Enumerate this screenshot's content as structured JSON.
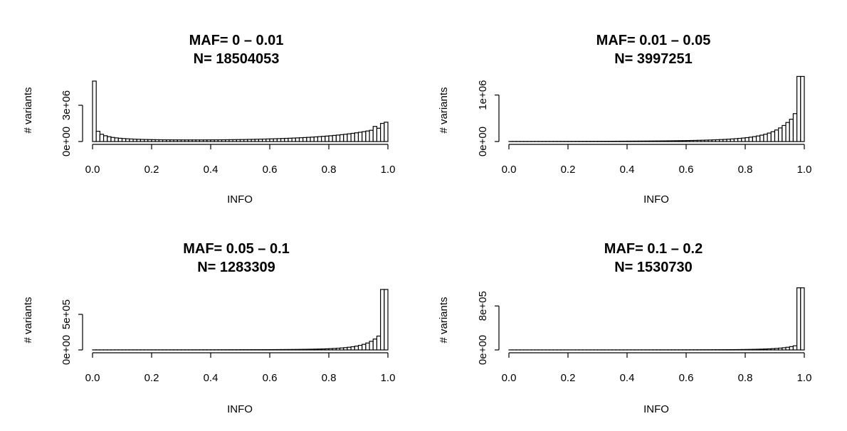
{
  "chart_data": [
    {
      "type": "bar",
      "title": "MAF= 0 – 0.01",
      "subtitle": "N= 18504053",
      "xlabel": "INFO",
      "ylabel": "# variants",
      "xlim": [
        0,
        1
      ],
      "ylim": [
        0,
        5000000
      ],
      "x_ticks": [
        "0.0",
        "0.2",
        "0.4",
        "0.6",
        "0.8",
        "1.0"
      ],
      "y_ticks": [
        {
          "value": 0,
          "label": "0e+00"
        },
        {
          "value": 3000000,
          "label": "3e+06"
        }
      ],
      "bin_width": 0.0125,
      "values": [
        5000000,
        850000,
        600000,
        480000,
        400000,
        340000,
        300000,
        270000,
        245000,
        225000,
        210000,
        195000,
        185000,
        175000,
        168000,
        160000,
        155000,
        150000,
        146000,
        142000,
        140000,
        138000,
        136000,
        135000,
        134000,
        133000,
        133000,
        133000,
        133000,
        134000,
        135000,
        136000,
        138000,
        140000,
        142000,
        145000,
        148000,
        152000,
        156000,
        160000,
        165000,
        170000,
        176000,
        182000,
        189000,
        196000,
        204000,
        212000,
        221000,
        230000,
        240000,
        251000,
        262000,
        274000,
        287000,
        300000,
        315000,
        330000,
        347000,
        365000,
        385000,
        406000,
        428000,
        452000,
        478000,
        505000,
        535000,
        567000,
        601000,
        638000,
        678000,
        721000,
        767000,
        818000,
        872000,
        930000,
        1250000,
        1100000,
        1500000,
        1600000
      ]
    },
    {
      "type": "bar",
      "title": "MAF= 0.01 – 0.05",
      "subtitle": "N= 3997251",
      "xlabel": "INFO",
      "ylabel": "# variants",
      "xlim": [
        0,
        1
      ],
      "ylim": [
        0,
        1300000
      ],
      "x_ticks": [
        "0.0",
        "0.2",
        "0.4",
        "0.6",
        "0.8",
        "1.0"
      ],
      "y_ticks": [
        {
          "value": 0,
          "label": "0e+00"
        },
        {
          "value": 1000000,
          "label": "1e+06"
        }
      ],
      "bin_width": 0.0125,
      "values": [
        2000,
        2100,
        2200,
        2300,
        2400,
        2500,
        2600,
        2700,
        2800,
        2900,
        3000,
        3100,
        3200,
        3350,
        3500,
        3650,
        3800,
        3950,
        4100,
        4300,
        4500,
        4700,
        4900,
        5100,
        5300,
        5600,
        5900,
        6200,
        6500,
        6800,
        7200,
        7600,
        8000,
        8400,
        8900,
        9400,
        9900,
        10500,
        11100,
        11800,
        12500,
        13300,
        14100,
        15000,
        16000,
        17000,
        18200,
        19500,
        21000,
        22500,
        24200,
        26100,
        28200,
        30500,
        33000,
        35800,
        38900,
        42400,
        46300,
        50700,
        55700,
        61400,
        68000,
        75500,
        84000,
        94000,
        106000,
        120000,
        137000,
        157000,
        182000,
        212000,
        248000,
        292000,
        345000,
        410000,
        480000,
        600000,
        1400000,
        1400000
      ]
    },
    {
      "type": "bar",
      "title": "MAF= 0.05 – 0.1",
      "subtitle": "N= 1283309",
      "xlabel": "INFO",
      "ylabel": "# variants",
      "xlim": [
        0,
        1
      ],
      "ylim": [
        0,
        850000
      ],
      "x_ticks": [
        "0.0",
        "0.2",
        "0.4",
        "0.6",
        "0.8",
        "1.0"
      ],
      "y_ticks": [
        {
          "value": 0,
          "label": "0e+00"
        },
        {
          "value": 500000,
          "label": "5e+05"
        }
      ],
      "bin_width": 0.0125,
      "values": [
        800,
        820,
        840,
        860,
        880,
        900,
        920,
        940,
        960,
        980,
        1000,
        1030,
        1060,
        1090,
        1120,
        1150,
        1180,
        1210,
        1250,
        1290,
        1330,
        1370,
        1410,
        1450,
        1500,
        1550,
        1600,
        1660,
        1720,
        1780,
        1850,
        1920,
        2000,
        2080,
        2170,
        2260,
        2360,
        2470,
        2590,
        2710,
        2850,
        2990,
        3150,
        3320,
        3500,
        3700,
        3920,
        4160,
        4420,
        4700,
        5000,
        5350,
        5730,
        6150,
        6600,
        7100,
        7700,
        8400,
        9200,
        10100,
        11200,
        12500,
        14000,
        15800,
        18000,
        20600,
        23800,
        27600,
        32200,
        37800,
        44800,
        53500,
        64500,
        78500,
        97000,
        121000,
        153000,
        195000,
        850000,
        850000
      ]
    },
    {
      "type": "bar",
      "title": "MAF= 0.1 – 0.2",
      "subtitle": "N= 1530730",
      "xlabel": "INFO",
      "ylabel": "# variants",
      "xlim": [
        0,
        1
      ],
      "ylim": [
        0,
        1100000
      ],
      "x_ticks": [
        "0.0",
        "0.2",
        "0.4",
        "0.6",
        "0.8",
        "1.0"
      ],
      "y_ticks": [
        {
          "value": 0,
          "label": "0e+00"
        },
        {
          "value": 800000,
          "label": "8e+05"
        }
      ],
      "bin_width": 0.0125,
      "values": [
        600,
        610,
        620,
        630,
        640,
        650,
        660,
        670,
        680,
        690,
        700,
        715,
        730,
        745,
        760,
        775,
        790,
        805,
        820,
        840,
        860,
        880,
        900,
        920,
        945,
        970,
        995,
        1020,
        1050,
        1080,
        1110,
        1140,
        1180,
        1220,
        1260,
        1300,
        1350,
        1400,
        1450,
        1510,
        1570,
        1640,
        1710,
        1790,
        1870,
        1960,
        2060,
        2170,
        2290,
        2420,
        2560,
        2720,
        2900,
        3100,
        3330,
        3590,
        3880,
        4210,
        4590,
        5020,
        5520,
        6100,
        6780,
        7570,
        8500,
        9600,
        10900,
        12500,
        14400,
        16700,
        19500,
        23000,
        27300,
        32700,
        39500,
        48500,
        60000,
        75000,
        1130000,
        1130000
      ]
    }
  ]
}
